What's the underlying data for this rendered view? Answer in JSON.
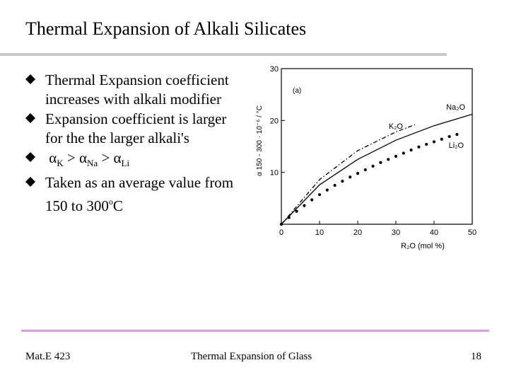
{
  "slide": {
    "title": "Thermal Expansion of Alkali Silicates",
    "bullets": [
      {
        "text": "Thermal Expansion coefficient increases with alkali modifier"
      },
      {
        "text": "Expansion coefficient is larger for the the larger alkali's"
      },
      {
        "alpha": "α",
        "k": "K",
        "gt": " > ",
        "na": "Na",
        "li": "Li"
      },
      {
        "text_before": " Taken as an average value from 150 to 300",
        "degree": "o",
        "unit": "C"
      }
    ]
  },
  "footer": {
    "left": "Mat.E 423",
    "center": "Thermal Expansion of Glass",
    "page": "18"
  },
  "chart_data": {
    "type": "line",
    "panel_label": "(a)",
    "xlabel": "R₂O  (mol %)",
    "ylabel": "α 150 - 300 · 10⁻⁶ / °C",
    "xlim": [
      0,
      50
    ],
    "ylim": [
      0,
      30
    ],
    "x_ticks": [
      "0",
      "10",
      "20",
      "30",
      "40",
      "50"
    ],
    "y_ticks": [
      "10",
      "20",
      "30"
    ],
    "series": [
      {
        "name": "Na₂O",
        "style": "solid",
        "x": [
          0,
          10,
          20,
          30,
          40,
          50
        ],
        "y": [
          0,
          7.6,
          12.5,
          16.2,
          19.0,
          21.2
        ]
      },
      {
        "name": "K₂O",
        "style": "dashdot",
        "x": [
          0,
          10,
          20,
          30,
          35
        ],
        "y": [
          0,
          8.6,
          14.2,
          17.8,
          19.2
        ]
      },
      {
        "name": "Li₂O",
        "style": "dots",
        "x": [
          0,
          2,
          4,
          6,
          8,
          10,
          12,
          14,
          16,
          18,
          20,
          22,
          24,
          26,
          28,
          30,
          32,
          34,
          36,
          38,
          40,
          42,
          44,
          46
        ],
        "y": [
          0,
          1.3,
          2.5,
          3.6,
          4.7,
          5.7,
          6.6,
          7.5,
          8.3,
          9.1,
          9.8,
          10.5,
          11.2,
          11.9,
          12.5,
          13.1,
          13.7,
          14.3,
          14.9,
          15.4,
          15.9,
          16.4,
          16.9,
          17.3
        ]
      }
    ]
  }
}
